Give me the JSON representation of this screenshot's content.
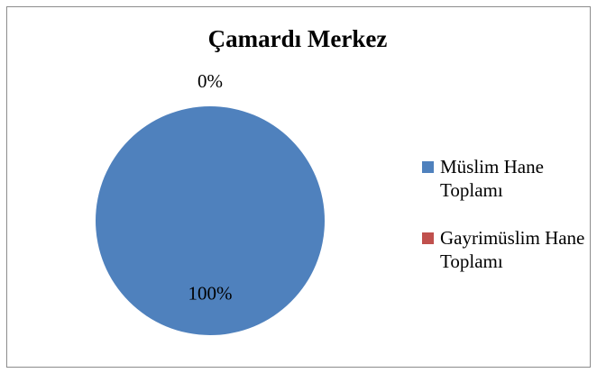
{
  "chart_data": {
    "type": "pie",
    "title": "Çamardı Merkez",
    "categories": [
      "Müslim Hane Toplamı",
      "Gayrimüslim Hane Toplamı"
    ],
    "values": [
      100,
      0
    ],
    "value_labels": [
      "100%",
      "0%"
    ],
    "colors": [
      "#4f81bd",
      "#c0504d"
    ],
    "legend": "right"
  }
}
